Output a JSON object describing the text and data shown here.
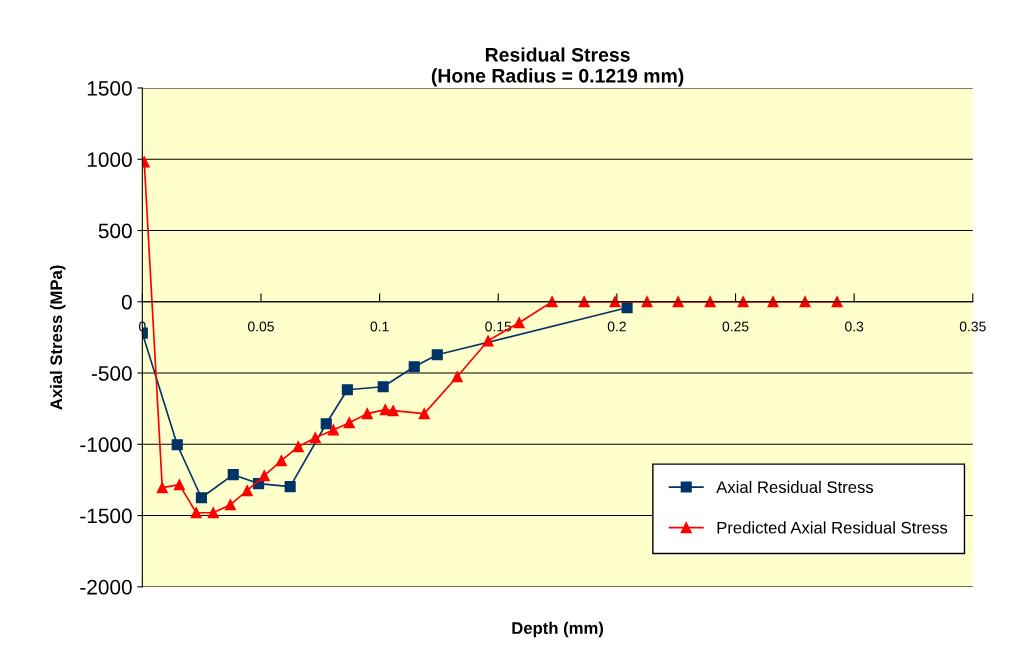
{
  "chart_data": {
    "type": "line",
    "title": "Residual Stress\n(Hone Radius = 0.1219 mm)",
    "xlabel": "Depth (mm)",
    "ylabel": "Axial Stress (MPa)",
    "series": [
      {
        "name": "Axial Residual Stress",
        "color": "#003366",
        "marker": "square",
        "x": [
          0,
          0.0147,
          0.0249,
          0.0383,
          0.049,
          0.0623,
          0.0775,
          0.0864,
          0.1015,
          0.1146,
          0.1243,
          0.2043
        ],
        "values": [
          -220,
          -1003,
          -1375,
          -1213,
          -1276,
          -1297,
          -856,
          -617,
          -596,
          -456,
          -372,
          -42
        ]
      },
      {
        "name": "Predicted Axial Residual Stress",
        "color": "#ff0000",
        "marker": "triangle",
        "x": [
          0.0008,
          0.0084,
          0.0156,
          0.0227,
          0.0299,
          0.0371,
          0.0442,
          0.0514,
          0.0586,
          0.0657,
          0.0729,
          0.0805,
          0.0872,
          0.0948,
          0.1024,
          0.1057,
          0.1188,
          0.1327,
          0.1457,
          0.1588,
          0.1727,
          0.1862,
          0.1992,
          0.2127,
          0.2258,
          0.2393,
          0.2532,
          0.2658,
          0.2793,
          0.2928
        ],
        "values": [
          982,
          -1304,
          -1283,
          -1480,
          -1480,
          -1424,
          -1325,
          -1220,
          -1115,
          -1017,
          -954,
          -899,
          -849,
          -785,
          -757,
          -764,
          -785,
          -526,
          -274,
          -147,
          0,
          0,
          0,
          0,
          0,
          0,
          0,
          0,
          0,
          0
        ]
      }
    ],
    "xlim": [
      0,
      0.35
    ],
    "xticks": [
      0,
      0.05,
      0.1,
      0.15,
      0.2,
      0.25,
      0.3,
      0.35
    ],
    "ylim": [
      -2000,
      1500
    ],
    "yticks": [
      -2000,
      -1500,
      -1000,
      -500,
      0,
      500,
      1000,
      1500
    ],
    "grid": "y",
    "legend": "bottom right",
    "line_style": "solid"
  }
}
